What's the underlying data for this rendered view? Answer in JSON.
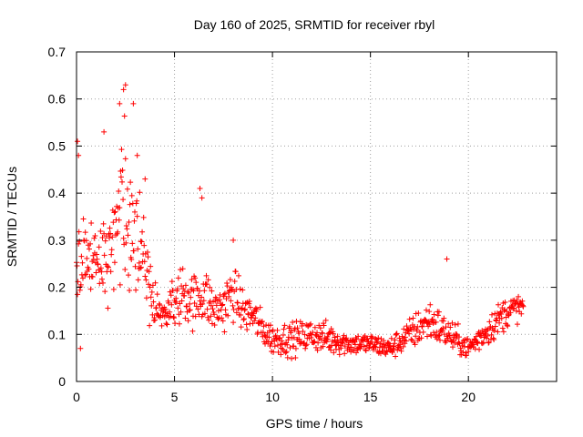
{
  "chart_data": {
    "type": "scatter",
    "title": "Day 160 of 2025, SRMTID for receiver rbyl",
    "xlabel": "GPS time / hours",
    "ylabel": "SRMTID / TECUs",
    "xlim": [
      0,
      24.5
    ],
    "ylim": [
      0,
      0.7
    ],
    "xticks": [
      0,
      5,
      10,
      15,
      20
    ],
    "yticks": [
      0,
      0.1,
      0.2,
      0.3,
      0.4,
      0.5,
      0.6,
      0.7
    ],
    "grid": true,
    "marker": "+",
    "color": "#ff0000",
    "sample_interval_hours": 0.025,
    "x_start": 0.0,
    "x_end": 22.8,
    "trend_profile": [
      {
        "x": 0.0,
        "y": 0.22,
        "spread": 0.12
      },
      {
        "x": 0.5,
        "y": 0.26,
        "spread": 0.09
      },
      {
        "x": 1.0,
        "y": 0.24,
        "spread": 0.07
      },
      {
        "x": 1.5,
        "y": 0.28,
        "spread": 0.09
      },
      {
        "x": 2.0,
        "y": 0.3,
        "spread": 0.08
      },
      {
        "x": 2.5,
        "y": 0.38,
        "spread": 0.16
      },
      {
        "x": 3.0,
        "y": 0.33,
        "spread": 0.12
      },
      {
        "x": 3.5,
        "y": 0.25,
        "spread": 0.1
      },
      {
        "x": 4.0,
        "y": 0.15,
        "spread": 0.04
      },
      {
        "x": 4.5,
        "y": 0.14,
        "spread": 0.03
      },
      {
        "x": 5.0,
        "y": 0.17,
        "spread": 0.05
      },
      {
        "x": 5.5,
        "y": 0.19,
        "spread": 0.06
      },
      {
        "x": 6.0,
        "y": 0.17,
        "spread": 0.05
      },
      {
        "x": 6.5,
        "y": 0.19,
        "spread": 0.06
      },
      {
        "x": 7.0,
        "y": 0.15,
        "spread": 0.04
      },
      {
        "x": 7.5,
        "y": 0.16,
        "spread": 0.05
      },
      {
        "x": 8.0,
        "y": 0.19,
        "spread": 0.05
      },
      {
        "x": 8.5,
        "y": 0.15,
        "spread": 0.04
      },
      {
        "x": 9.0,
        "y": 0.14,
        "spread": 0.04
      },
      {
        "x": 9.5,
        "y": 0.11,
        "spread": 0.03
      },
      {
        "x": 10.0,
        "y": 0.09,
        "spread": 0.03
      },
      {
        "x": 11.0,
        "y": 0.09,
        "spread": 0.03
      },
      {
        "x": 12.0,
        "y": 0.1,
        "spread": 0.03
      },
      {
        "x": 13.0,
        "y": 0.09,
        "spread": 0.03
      },
      {
        "x": 14.0,
        "y": 0.08,
        "spread": 0.02
      },
      {
        "x": 15.0,
        "y": 0.08,
        "spread": 0.02
      },
      {
        "x": 16.0,
        "y": 0.07,
        "spread": 0.02
      },
      {
        "x": 17.0,
        "y": 0.1,
        "spread": 0.03
      },
      {
        "x": 18.0,
        "y": 0.13,
        "spread": 0.04
      },
      {
        "x": 19.0,
        "y": 0.1,
        "spread": 0.03
      },
      {
        "x": 20.0,
        "y": 0.07,
        "spread": 0.02
      },
      {
        "x": 21.0,
        "y": 0.11,
        "spread": 0.03
      },
      {
        "x": 22.0,
        "y": 0.15,
        "spread": 0.03
      },
      {
        "x": 22.8,
        "y": 0.16,
        "spread": 0.02
      }
    ],
    "notable_points": [
      {
        "x": 0.05,
        "y": 0.51
      },
      {
        "x": 0.1,
        "y": 0.48
      },
      {
        "x": 0.2,
        "y": 0.07
      },
      {
        "x": 1.4,
        "y": 0.53
      },
      {
        "x": 2.2,
        "y": 0.59
      },
      {
        "x": 2.4,
        "y": 0.62
      },
      {
        "x": 2.5,
        "y": 0.63
      },
      {
        "x": 2.9,
        "y": 0.59
      },
      {
        "x": 3.1,
        "y": 0.48
      },
      {
        "x": 3.5,
        "y": 0.43
      },
      {
        "x": 6.3,
        "y": 0.41
      },
      {
        "x": 6.4,
        "y": 0.39
      },
      {
        "x": 8.0,
        "y": 0.3
      },
      {
        "x": 18.9,
        "y": 0.26
      }
    ]
  }
}
